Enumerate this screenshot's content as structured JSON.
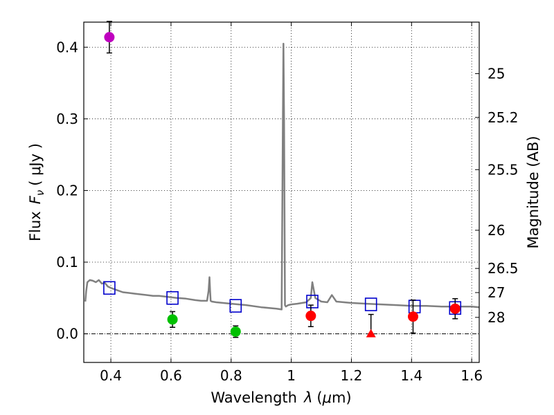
{
  "chart_data": {
    "type": "scatter",
    "xlabel": {
      "prefix": "Wavelength",
      "symbol": "λ",
      "unit_open": "(",
      "unit_mu": "μ",
      "unit_rest": "m)"
    },
    "ylabel": {
      "prefix": "Flux",
      "symbol": "F",
      "subscript": "ν",
      "unit": "( μJy )"
    },
    "y2label": "Magnitude (AB)",
    "xlim": [
      0.31,
      1.625
    ],
    "ylim": [
      -0.04,
      0.435
    ],
    "grid": true,
    "x_ticks": [
      {
        "value": 0.4,
        "label": "0.4"
      },
      {
        "value": 0.6,
        "label": "0.6"
      },
      {
        "value": 0.8,
        "label": "0.8"
      },
      {
        "value": 1.0,
        "label": "1"
      },
      {
        "value": 1.2,
        "label": "1.2"
      },
      {
        "value": 1.4,
        "label": "1.4"
      },
      {
        "value": 1.6,
        "label": "1.6"
      }
    ],
    "y_ticks": [
      {
        "value": 0.0,
        "label": "0.0"
      },
      {
        "value": 0.1,
        "label": "0.1"
      },
      {
        "value": 0.2,
        "label": "0.2"
      },
      {
        "value": 0.3,
        "label": "0.3"
      },
      {
        "value": 0.4,
        "label": "0.4"
      }
    ],
    "mag_ticks": [
      {
        "flux": 0.3631,
        "label": "25"
      },
      {
        "flux": 0.302,
        "label": "25.2"
      },
      {
        "flux": 0.2291,
        "label": "25.5"
      },
      {
        "flux": 0.1445,
        "label": "26"
      },
      {
        "flux": 0.0912,
        "label": "26.5"
      },
      {
        "flux": 0.0575,
        "label": "27"
      },
      {
        "flux": 0.0229,
        "label": "28"
      }
    ],
    "model_sed": {
      "name": "model spectrum",
      "color": "#808080",
      "x": [
        0.315,
        0.318,
        0.322,
        0.33,
        0.34,
        0.35,
        0.36,
        0.37,
        0.38,
        0.39,
        0.4,
        0.42,
        0.44,
        0.46,
        0.48,
        0.5,
        0.52,
        0.54,
        0.56,
        0.58,
        0.6,
        0.62,
        0.65,
        0.68,
        0.7,
        0.72,
        0.725,
        0.728,
        0.73,
        0.732,
        0.736,
        0.75,
        0.8,
        0.85,
        0.9,
        0.95,
        0.968,
        0.972,
        0.974,
        0.976,
        0.979,
        0.982,
        0.99,
        1.0,
        1.02,
        1.05,
        1.065,
        1.07,
        1.08,
        1.1,
        1.12,
        1.135,
        1.15,
        1.2,
        1.25,
        1.3,
        1.35,
        1.4,
        1.45,
        1.5,
        1.55,
        1.6,
        1.625
      ],
      "y": [
        0.045,
        0.06,
        0.072,
        0.075,
        0.074,
        0.072,
        0.075,
        0.07,
        0.071,
        0.066,
        0.064,
        0.061,
        0.058,
        0.057,
        0.056,
        0.055,
        0.054,
        0.053,
        0.053,
        0.052,
        0.051,
        0.05,
        0.049,
        0.047,
        0.046,
        0.046,
        0.06,
        0.079,
        0.06,
        0.046,
        0.045,
        0.044,
        0.042,
        0.04,
        0.037,
        0.035,
        0.034,
        0.3,
        0.405,
        0.3,
        0.04,
        0.038,
        0.04,
        0.041,
        0.042,
        0.044,
        0.05,
        0.072,
        0.05,
        0.045,
        0.044,
        0.054,
        0.045,
        0.043,
        0.042,
        0.041,
        0.04,
        0.039,
        0.039,
        0.038,
        0.038,
        0.038,
        0.037
      ]
    },
    "model_bands": {
      "name": "model photometry",
      "color": "#0000cc",
      "x": [
        0.395,
        0.605,
        0.815,
        1.07,
        1.265,
        1.41,
        1.545
      ],
      "y": [
        0.064,
        0.05,
        0.039,
        0.045,
        0.041,
        0.038,
        0.036
      ]
    },
    "observations": [
      {
        "name": "violet",
        "x": 0.395,
        "y": 0.414,
        "err": 0.022,
        "color": "#bf00bf",
        "marker": "circle"
      },
      {
        "name": "green",
        "x": 0.605,
        "y": 0.02,
        "err": 0.011,
        "color": "#00c000",
        "marker": "circle"
      },
      {
        "name": "green",
        "x": 0.815,
        "y": 0.003,
        "err": 0.008,
        "color": "#00c000",
        "marker": "circle"
      },
      {
        "name": "red",
        "x": 1.065,
        "y": 0.025,
        "err": 0.015,
        "color": "#ff0000",
        "marker": "circle"
      },
      {
        "name": "red upper limit",
        "x": 1.265,
        "y": 0.0,
        "err_low": 0.0,
        "err_high": 0.027,
        "color": "#ff0000",
        "marker": "triangle"
      },
      {
        "name": "red",
        "x": 1.405,
        "y": 0.024,
        "err": 0.023,
        "color": "#ff0000",
        "marker": "circle"
      },
      {
        "name": "red",
        "x": 1.545,
        "y": 0.035,
        "err": 0.014,
        "color": "#ff0000",
        "marker": "circle"
      }
    ]
  }
}
